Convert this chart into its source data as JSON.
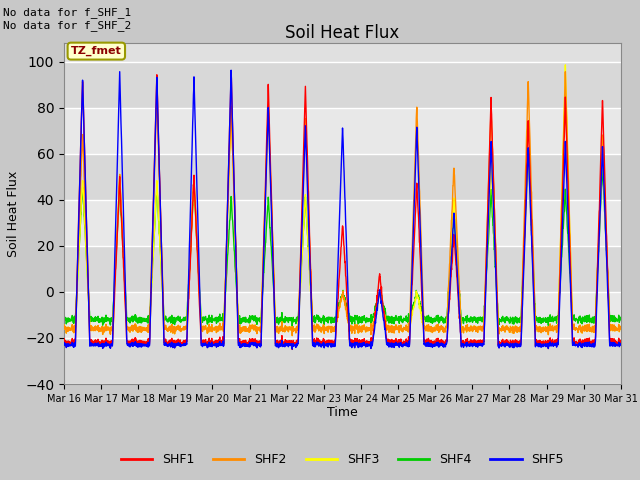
{
  "title": "Soil Heat Flux",
  "ylabel": "Soil Heat Flux",
  "xlabel": "Time",
  "ylim": [
    -40,
    108
  ],
  "yticks": [
    -40,
    -20,
    0,
    20,
    40,
    60,
    80,
    100
  ],
  "annotation_line1": "No data for f_SHF_1",
  "annotation_line2": "No data for f_SHF_2",
  "tz_label": "TZ_fmet",
  "legend_entries": [
    "SHF1",
    "SHF2",
    "SHF3",
    "SHF4",
    "SHF5"
  ],
  "legend_colors": [
    "#ff0000",
    "#ff8c00",
    "#ffff00",
    "#00cc00",
    "#0000ff"
  ],
  "fig_facecolor": "#c8c8c8",
  "plot_bg_color": "#e0e0e0",
  "n_days": 15,
  "start_day": 16,
  "figsize": [
    6.4,
    4.8
  ],
  "dpi": 100
}
